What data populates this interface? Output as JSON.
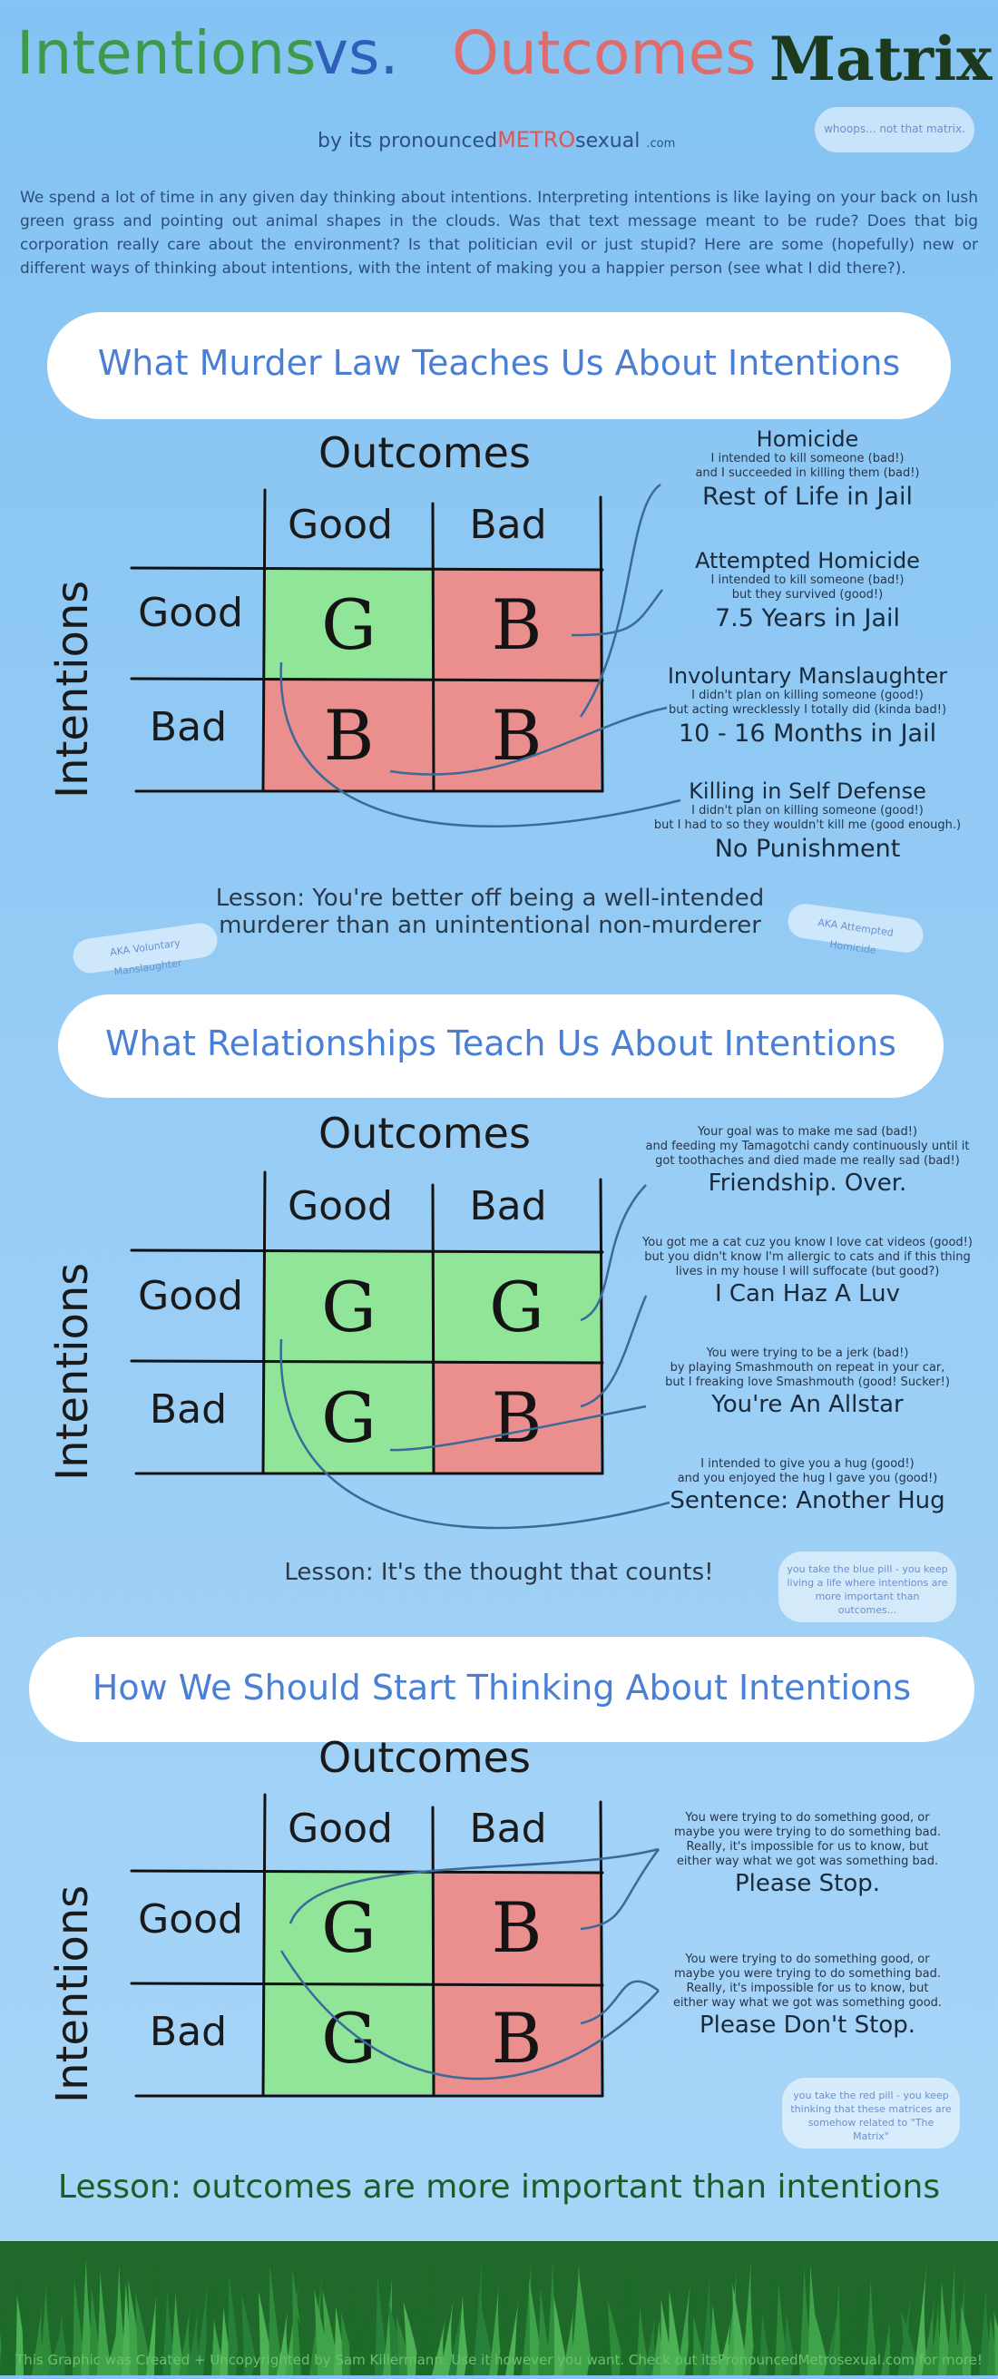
{
  "header": {
    "title_1": "Intentions",
    "title_2": "vs.",
    "title_3": "Outcomes",
    "title_4": "Matrix",
    "byline_by": "by",
    "byline_a": "its pronounced",
    "byline_metro": "METRO",
    "byline_b": "sexual",
    "byline_com": ".com",
    "whoops": "whoops... not that matrix."
  },
  "intro": "We spend a lot of time in any given day thinking about intentions. Interpreting intentions is like laying on your back on lush green grass and pointing out animal shapes in the clouds. Was that text message meant to be rude? Does that big corporation really care about the environment? Is that politician evil or just stupid? Here are some (hopefully) new or different ways of thinking about intentions, with the intent of making you a happier person (see what I did there?).",
  "common": {
    "outcomes": "Outcomes",
    "intentions": "Intentions",
    "good": "Good",
    "bad": "Bad"
  },
  "section1": {
    "title": "What Murder Law Teaches Us About Intentions",
    "cells": [
      "G",
      "B",
      "B",
      "B"
    ],
    "notes": [
      {
        "head": "Homicide",
        "lines": [
          "I intended to kill someone (bad!)",
          "and I succeeded in killing them (bad!)"
        ],
        "result": "Rest of Life in Jail"
      },
      {
        "head": "Attempted Homicide",
        "lines": [
          "I intended to kill someone (bad!)",
          "but they survived (good!)"
        ],
        "result": "7.5 Years in Jail"
      },
      {
        "head": "Involuntary Manslaughter",
        "lines": [
          "I didn't plan on killing someone (good!)",
          "but acting wrecklessly I totally did (kinda bad!)"
        ],
        "result": "10 - 16 Months in Jail"
      },
      {
        "head": "Killing in Self Defense",
        "lines": [
          "I didn't plan on killing someone (good!)",
          "but I had to so they wouldn't kill me (good enough.)"
        ],
        "result": "No Punishment"
      }
    ],
    "lesson_1": "Lesson: You're better off being a well-intended",
    "lesson_2": "murderer than an unintentional non-murderer",
    "aka_left": "AKA Voluntary Manslaughter",
    "aka_right": "AKA Attempted Homicide"
  },
  "section2": {
    "title": "What Relationships Teach Us About Intentions",
    "cells": [
      "G",
      "G",
      "G",
      "B"
    ],
    "notes": [
      {
        "lines": [
          "Your goal was to make me sad (bad!)",
          "and feeding my Tamagotchi candy continuously until it",
          "got toothaches and died made me really sad (bad!)"
        ],
        "result": "Friendship. Over."
      },
      {
        "lines": [
          "You got me a cat cuz you know I love cat videos (good!)",
          "but you didn't know I'm allergic to cats and if this thing",
          "lives in my house I will suffocate (but good?)"
        ],
        "result": "I Can Haz A Luv"
      },
      {
        "lines": [
          "You were trying to be a jerk (bad!)",
          "by playing Smashmouth on repeat in your car,",
          "but I freaking love Smashmouth (good! Sucker!)"
        ],
        "result": "You're An Allstar"
      },
      {
        "lines": [
          "I intended to give you a hug (good!)",
          "and you enjoyed the hug I gave you (good!)"
        ],
        "result": "Sentence: Another Hug"
      }
    ],
    "lesson": "Lesson: It's the thought that counts!",
    "bluepill": "you take the blue pill - you keep living a life where intentions are more important than outcomes..."
  },
  "section3": {
    "title": "How We Should Start Thinking About Intentions",
    "cells": [
      "G",
      "B",
      "G",
      "B"
    ],
    "notes": [
      {
        "lines": [
          "You were trying to do something good, or",
          "maybe you were trying to do something bad.",
          "Really, it's impossible for us to know, but",
          "either way what we got was something bad."
        ],
        "result": "Please Stop."
      },
      {
        "lines": [
          "You were trying to do something good, or",
          "maybe you were trying to do something bad.",
          "Really, it's impossible for us to know, but",
          "either way what we got was something good."
        ],
        "result": "Please Don't Stop."
      }
    ],
    "lesson": "Lesson: outcomes are more important than intentions",
    "redpill": "you take the red pill - you keep thinking that these matrices are somehow related to \"The Matrix\""
  },
  "footer": "This Graphic was Created + Uncopyrighted by Sam Killermann. Use it however you want. Check out itsPronouncedMetrosexual.com for more!",
  "colors": {
    "good": "#90e598",
    "bad": "#ea8e8e",
    "sky": "#9ccff6",
    "title_blue": "#4a7fd6"
  }
}
